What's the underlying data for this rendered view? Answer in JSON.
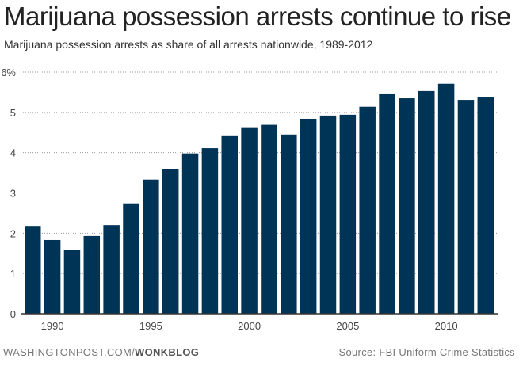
{
  "chart_data": {
    "type": "bar",
    "title": "Marijuana possession arrests continue to rise",
    "subtitle": "Marijuana possession arrests as share of all arrests nationwide, 1989-2012",
    "categories": [
      1989,
      1990,
      1991,
      1992,
      1993,
      1994,
      1995,
      1996,
      1997,
      1998,
      1999,
      2000,
      2001,
      2002,
      2003,
      2004,
      2005,
      2006,
      2007,
      2008,
      2009,
      2010,
      2011,
      2012
    ],
    "values": [
      2.18,
      1.83,
      1.59,
      1.93,
      2.2,
      2.74,
      3.33,
      3.6,
      3.98,
      4.11,
      4.41,
      4.63,
      4.69,
      4.45,
      4.84,
      4.92,
      4.94,
      5.14,
      5.45,
      5.35,
      5.53,
      5.71,
      5.31,
      5.37
    ],
    "ylim": [
      0,
      6
    ],
    "yticks": [
      "0",
      "1",
      "2",
      "3",
      "4",
      "5",
      "6%"
    ],
    "xticks": [
      "1990",
      "1995",
      "2000",
      "2005",
      "2010"
    ],
    "grid": true,
    "bar_color": "#003456"
  },
  "footer": {
    "credit_prefix": "WASHINGTONPOST.COM/",
    "credit_bold": "WONKBLOG",
    "source": "Source: FBI Uniform Crime Statistics"
  }
}
